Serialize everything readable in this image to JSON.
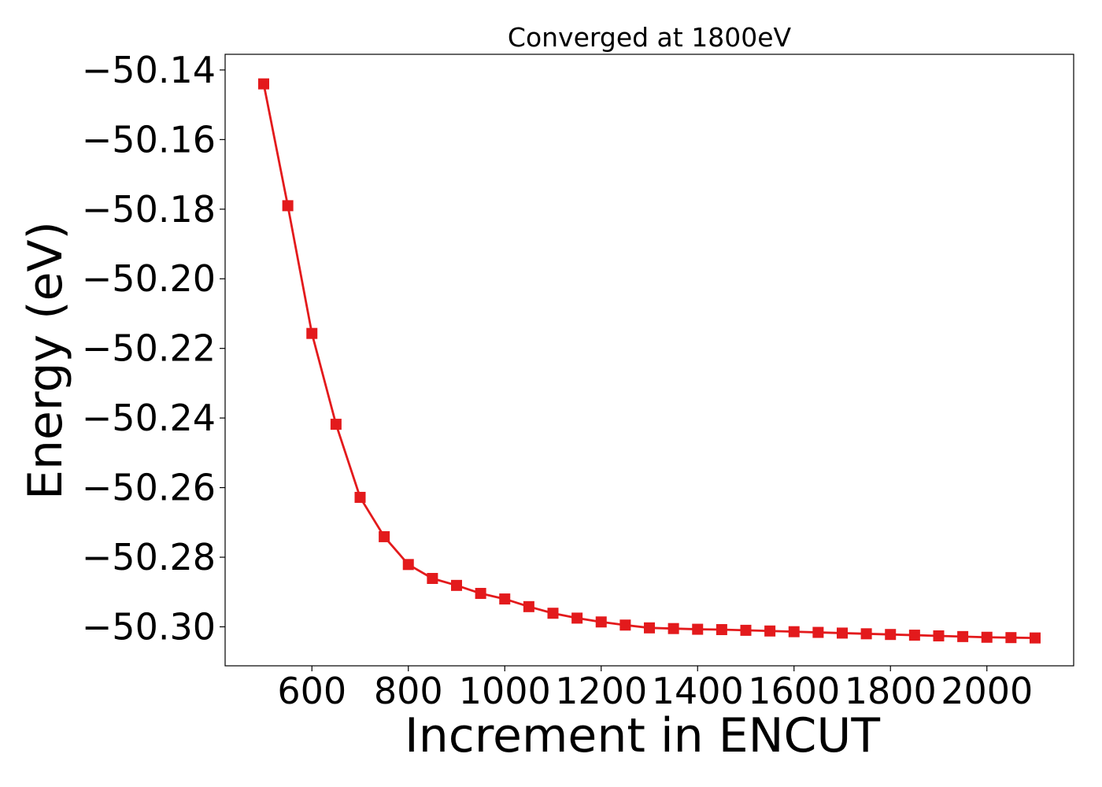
{
  "chart_data": {
    "type": "line",
    "title": "Converged at 1800eV",
    "xlabel": "Increment in ENCUT",
    "ylabel": "Energy (eV)",
    "xlim": [
      420,
      2180
    ],
    "ylim": [
      -50.3112,
      -50.1355
    ],
    "x_ticks": [
      600,
      800,
      1000,
      1200,
      1400,
      1600,
      1800,
      2000
    ],
    "x_tick_labels": [
      "600",
      "800",
      "1000",
      "1200",
      "1400",
      "1600",
      "1800",
      "2000"
    ],
    "y_ticks": [
      -50.14,
      -50.16,
      -50.18,
      -50.2,
      -50.22,
      -50.24,
      -50.26,
      -50.28,
      -50.3
    ],
    "y_tick_labels": [
      "−50.14",
      "−50.16",
      "−50.18",
      "−50.20",
      "−50.22",
      "−50.24",
      "−50.26",
      "−50.28",
      "−50.30"
    ],
    "grid": false,
    "series": [
      {
        "color": "#e31a1c",
        "marker": "square",
        "x": [
          500,
          550,
          600,
          650,
          700,
          750,
          800,
          850,
          900,
          950,
          1000,
          1050,
          1100,
          1150,
          1200,
          1250,
          1300,
          1350,
          1400,
          1450,
          1500,
          1550,
          1600,
          1650,
          1700,
          1750,
          1800,
          1850,
          1900,
          1950,
          2000,
          2050,
          2100
        ],
        "y": [
          -50.144,
          -50.179,
          -50.2157,
          -50.2418,
          -50.2628,
          -50.2741,
          -50.2821,
          -50.2861,
          -50.2881,
          -50.2904,
          -50.292,
          -50.2942,
          -50.2961,
          -50.2975,
          -50.2986,
          -50.2995,
          -50.3003,
          -50.3005,
          -50.3007,
          -50.3008,
          -50.301,
          -50.3012,
          -50.3014,
          -50.3016,
          -50.3018,
          -50.302,
          -50.3022,
          -50.3024,
          -50.3026,
          -50.3028,
          -50.303,
          -50.3031,
          -50.3032
        ]
      }
    ]
  }
}
